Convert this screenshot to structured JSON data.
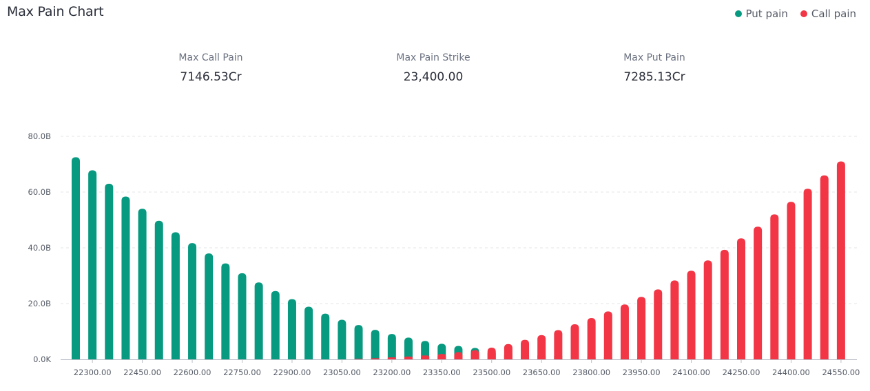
{
  "header": {
    "title": "Max Pain Chart"
  },
  "legend": [
    {
      "name": "Put pain",
      "color": "#089981"
    },
    {
      "name": "Call pain",
      "color": "#f23645"
    }
  ],
  "stats": [
    {
      "label": "Max Call Pain",
      "value": "7146.53Cr"
    },
    {
      "label": "Max Pain Strike",
      "value": "23,400.00"
    },
    {
      "label": "Max Put Pain",
      "value": "7285.13Cr"
    }
  ],
  "chart_data": {
    "type": "bar",
    "title": "Max Pain Chart",
    "xlabel": "",
    "ylabel": "",
    "ylim": [
      0,
      80
    ],
    "y_unit": "B",
    "y_ticks": [
      "0.0K",
      "20.0B",
      "40.0B",
      "60.0B",
      "80.0B"
    ],
    "grid": true,
    "legend_position": "top-right",
    "categories": [
      22250,
      22300,
      22350,
      22400,
      22450,
      22500,
      22550,
      22600,
      22650,
      22700,
      22750,
      22800,
      22850,
      22900,
      22950,
      23000,
      23050,
      23100,
      23150,
      23200,
      23250,
      23300,
      23350,
      23400,
      23450,
      23500,
      23550,
      23600,
      23650,
      23700,
      23750,
      23800,
      23850,
      23900,
      23950,
      24000,
      24050,
      24100,
      24150,
      24200,
      24250,
      24300,
      24350,
      24400,
      24450,
      24500,
      24550
    ],
    "x_tick_labels": [
      "22300.00",
      "22450.00",
      "22600.00",
      "22750.00",
      "22900.00",
      "23050.00",
      "23200.00",
      "23350.00",
      "23500.00",
      "23650.00",
      "23800.00",
      "23950.00",
      "24100.00",
      "24250.00",
      "24400.00",
      "24550.00"
    ],
    "x_tick_categories": [
      22300,
      22450,
      22600,
      22750,
      22900,
      23050,
      23200,
      23350,
      23500,
      23650,
      23800,
      23950,
      24100,
      24250,
      24400,
      24550
    ],
    "series": [
      {
        "name": "Put pain",
        "color": "#089981",
        "values": [
          72.5,
          67.8,
          63.0,
          58.4,
          54.0,
          49.7,
          45.6,
          41.7,
          38.0,
          34.4,
          30.9,
          27.6,
          24.5,
          21.6,
          18.9,
          16.4,
          14.2,
          12.3,
          10.6,
          9.1,
          7.8,
          6.6,
          5.6,
          4.8,
          4.1,
          3.5,
          3.0,
          2.5,
          2.1,
          1.8,
          1.5,
          1.3,
          1.1,
          0.9,
          0.7,
          0.6,
          0.5,
          0.4,
          0.3,
          0.25,
          0.2,
          0.15,
          0.1,
          0.05,
          0,
          0,
          0
        ]
      },
      {
        "name": "Call pain",
        "color": "#f23645",
        "values": [
          0,
          0,
          0,
          0,
          0,
          0,
          0,
          0,
          0,
          0,
          0,
          0,
          0,
          0,
          0,
          0,
          0,
          0.2,
          0.4,
          0.7,
          1.0,
          1.4,
          1.9,
          2.6,
          3.3,
          4.2,
          5.5,
          7.0,
          8.7,
          10.5,
          12.6,
          14.8,
          17.2,
          19.7,
          22.4,
          25.1,
          28.3,
          31.8,
          35.5,
          39.3,
          43.4,
          47.6,
          52.0,
          56.5,
          61.2,
          66.0,
          71.0
        ]
      }
    ]
  }
}
